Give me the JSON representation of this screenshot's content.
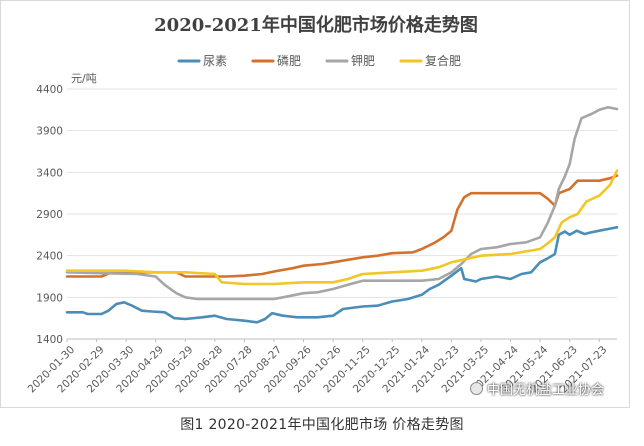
{
  "caption": "图1 2020-2021年中国化肥市场 价格走势图",
  "watermark": "中国无机盐工业协会",
  "chart_data": {
    "type": "line",
    "title": "2020-2021年中国化肥市场价格走势图",
    "ylabel": "元/吨",
    "xlabel": "",
    "ylim": [
      1400,
      4400
    ],
    "yticks": [
      1400,
      1900,
      2400,
      2900,
      3400,
      3900,
      4400
    ],
    "grid": "horizontal",
    "legend_position": "top",
    "x_tick_labels": [
      "2020-01-30",
      "2020-02-29",
      "2020-03-30",
      "2020-04-29",
      "2020-05-29",
      "2020-06-28",
      "2020-07-28",
      "2020-08-27",
      "2020-09-26",
      "2020-10-26",
      "2020-11-25",
      "2020-12-25",
      "2021-01-24",
      "2021-02-23",
      "2021-03-25",
      "2021-04-24",
      "2021-05-24",
      "2021-06-23",
      "2021-07-23"
    ],
    "x_start": "2020-01-30",
    "x_end": "2021-08-10",
    "series": [
      {
        "name": "尿素",
        "color": "#4a8db7",
        "points": [
          [
            "2020-01-30",
            1720
          ],
          [
            "2020-02-15",
            1720
          ],
          [
            "2020-02-20",
            1700
          ],
          [
            "2020-03-05",
            1700
          ],
          [
            "2020-03-12",
            1740
          ],
          [
            "2020-03-20",
            1820
          ],
          [
            "2020-03-28",
            1840
          ],
          [
            "2020-04-05",
            1800
          ],
          [
            "2020-04-15",
            1740
          ],
          [
            "2020-04-25",
            1730
          ],
          [
            "2020-05-08",
            1720
          ],
          [
            "2020-05-18",
            1650
          ],
          [
            "2020-05-29",
            1640
          ],
          [
            "2020-06-15",
            1660
          ],
          [
            "2020-06-28",
            1680
          ],
          [
            "2020-07-10",
            1640
          ],
          [
            "2020-07-28",
            1620
          ],
          [
            "2020-08-10",
            1600
          ],
          [
            "2020-08-18",
            1640
          ],
          [
            "2020-08-25",
            1710
          ],
          [
            "2020-09-05",
            1680
          ],
          [
            "2020-09-20",
            1660
          ],
          [
            "2020-10-10",
            1660
          ],
          [
            "2020-10-26",
            1680
          ],
          [
            "2020-11-05",
            1760
          ],
          [
            "2020-11-25",
            1790
          ],
          [
            "2020-12-10",
            1800
          ],
          [
            "2020-12-25",
            1850
          ],
          [
            "2021-01-10",
            1880
          ],
          [
            "2021-01-24",
            1930
          ],
          [
            "2021-02-01",
            2000
          ],
          [
            "2021-02-10",
            2050
          ],
          [
            "2021-02-23",
            2160
          ],
          [
            "2021-03-05",
            2250
          ],
          [
            "2021-03-08",
            2120
          ],
          [
            "2021-03-20",
            2090
          ],
          [
            "2021-03-25",
            2120
          ],
          [
            "2021-04-10",
            2150
          ],
          [
            "2021-04-24",
            2120
          ],
          [
            "2021-05-05",
            2180
          ],
          [
            "2021-05-15",
            2200
          ],
          [
            "2021-05-24",
            2320
          ],
          [
            "2021-06-01",
            2370
          ],
          [
            "2021-06-08",
            2420
          ],
          [
            "2021-06-12",
            2650
          ],
          [
            "2021-06-18",
            2690
          ],
          [
            "2021-06-23",
            2650
          ],
          [
            "2021-06-30",
            2700
          ],
          [
            "2021-07-08",
            2660
          ],
          [
            "2021-07-15",
            2680
          ],
          [
            "2021-07-23",
            2700
          ],
          [
            "2021-08-01",
            2720
          ],
          [
            "2021-08-10",
            2740
          ]
        ]
      },
      {
        "name": "磷肥",
        "color": "#d4712c",
        "points": [
          [
            "2020-01-30",
            2150
          ],
          [
            "2020-03-05",
            2150
          ],
          [
            "2020-03-15",
            2200
          ],
          [
            "2020-04-29",
            2200
          ],
          [
            "2020-05-20",
            2200
          ],
          [
            "2020-05-29",
            2150
          ],
          [
            "2020-06-28",
            2150
          ],
          [
            "2020-07-10",
            2150
          ],
          [
            "2020-07-28",
            2160
          ],
          [
            "2020-08-15",
            2180
          ],
          [
            "2020-08-27",
            2210
          ],
          [
            "2020-09-15",
            2250
          ],
          [
            "2020-09-26",
            2280
          ],
          [
            "2020-10-15",
            2300
          ],
          [
            "2020-10-26",
            2320
          ],
          [
            "2020-11-10",
            2350
          ],
          [
            "2020-11-25",
            2380
          ],
          [
            "2020-12-10",
            2400
          ],
          [
            "2020-12-25",
            2430
          ],
          [
            "2021-01-15",
            2440
          ],
          [
            "2021-01-24",
            2480
          ],
          [
            "2021-02-05",
            2550
          ],
          [
            "2021-02-15",
            2620
          ],
          [
            "2021-02-23",
            2700
          ],
          [
            "2021-03-01",
            2950
          ],
          [
            "2021-03-08",
            3100
          ],
          [
            "2021-03-15",
            3150
          ],
          [
            "2021-05-24",
            3150
          ],
          [
            "2021-06-01",
            3080
          ],
          [
            "2021-06-08",
            3000
          ],
          [
            "2021-06-12",
            3150
          ],
          [
            "2021-06-23",
            3200
          ],
          [
            "2021-07-01",
            3300
          ],
          [
            "2021-07-10",
            3300
          ],
          [
            "2021-07-23",
            3300
          ],
          [
            "2021-08-03",
            3330
          ],
          [
            "2021-08-10",
            3360
          ]
        ]
      },
      {
        "name": "钾肥",
        "color": "#a6a6a6",
        "points": [
          [
            "2020-01-30",
            2200
          ],
          [
            "2020-04-10",
            2180
          ],
          [
            "2020-04-29",
            2150
          ],
          [
            "2020-05-08",
            2050
          ],
          [
            "2020-05-20",
            1950
          ],
          [
            "2020-05-29",
            1900
          ],
          [
            "2020-06-10",
            1880
          ],
          [
            "2020-06-28",
            1880
          ],
          [
            "2020-07-28",
            1880
          ],
          [
            "2020-08-27",
            1880
          ],
          [
            "2020-09-05",
            1900
          ],
          [
            "2020-09-26",
            1950
          ],
          [
            "2020-10-10",
            1960
          ],
          [
            "2020-10-26",
            2000
          ],
          [
            "2020-11-10",
            2050
          ],
          [
            "2020-11-25",
            2100
          ],
          [
            "2020-12-25",
            2100
          ],
          [
            "2021-01-24",
            2100
          ],
          [
            "2021-02-10",
            2120
          ],
          [
            "2021-02-23",
            2200
          ],
          [
            "2021-03-05",
            2300
          ],
          [
            "2021-03-15",
            2420
          ],
          [
            "2021-03-25",
            2480
          ],
          [
            "2021-04-10",
            2500
          ],
          [
            "2021-04-24",
            2540
          ],
          [
            "2021-05-10",
            2560
          ],
          [
            "2021-05-24",
            2620
          ],
          [
            "2021-06-01",
            2800
          ],
          [
            "2021-06-08",
            3000
          ],
          [
            "2021-06-12",
            3200
          ],
          [
            "2021-06-18",
            3350
          ],
          [
            "2021-06-23",
            3500
          ],
          [
            "2021-06-28",
            3800
          ],
          [
            "2021-07-05",
            4050
          ],
          [
            "2021-07-15",
            4100
          ],
          [
            "2021-07-23",
            4150
          ],
          [
            "2021-08-01",
            4180
          ],
          [
            "2021-08-10",
            4160
          ]
        ]
      },
      {
        "name": "复合肥",
        "color": "#f2c624",
        "points": [
          [
            "2020-01-30",
            2220
          ],
          [
            "2020-03-30",
            2220
          ],
          [
            "2020-04-29",
            2200
          ],
          [
            "2020-05-29",
            2200
          ],
          [
            "2020-06-28",
            2180
          ],
          [
            "2020-07-05",
            2080
          ],
          [
            "2020-07-28",
            2060
          ],
          [
            "2020-08-27",
            2060
          ],
          [
            "2020-09-26",
            2080
          ],
          [
            "2020-10-26",
            2080
          ],
          [
            "2020-11-10",
            2120
          ],
          [
            "2020-11-25",
            2180
          ],
          [
            "2020-12-25",
            2200
          ],
          [
            "2021-01-24",
            2220
          ],
          [
            "2021-02-10",
            2260
          ],
          [
            "2021-02-23",
            2320
          ],
          [
            "2021-03-10",
            2360
          ],
          [
            "2021-03-25",
            2400
          ],
          [
            "2021-04-24",
            2420
          ],
          [
            "2021-05-24",
            2480
          ],
          [
            "2021-06-01",
            2550
          ],
          [
            "2021-06-08",
            2620
          ],
          [
            "2021-06-15",
            2800
          ],
          [
            "2021-06-23",
            2860
          ],
          [
            "2021-07-01",
            2900
          ],
          [
            "2021-07-10",
            3050
          ],
          [
            "2021-07-23",
            3120
          ],
          [
            "2021-08-03",
            3250
          ],
          [
            "2021-08-10",
            3420
          ]
        ]
      }
    ]
  }
}
